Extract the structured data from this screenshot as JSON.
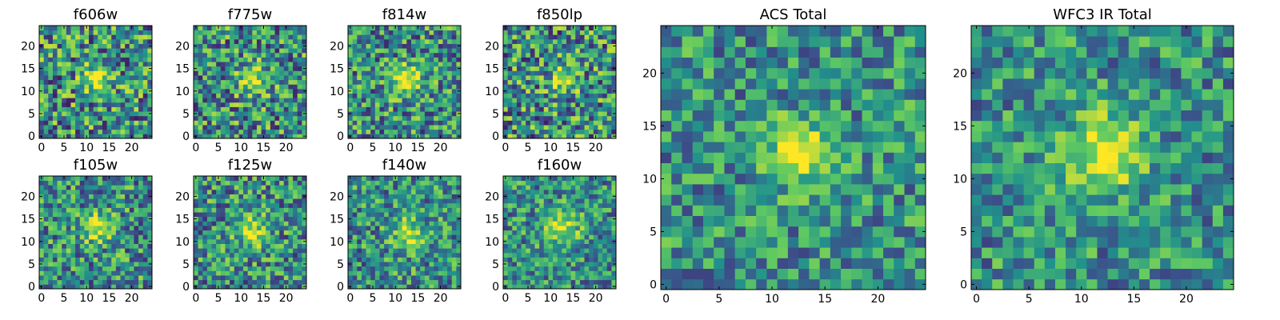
{
  "chart_data": [
    {
      "type": "heatmap",
      "title": "f606w",
      "x_ticks": [
        0,
        5,
        10,
        15,
        20
      ],
      "y_ticks": [
        0,
        5,
        10,
        15,
        20
      ],
      "xlim": [
        -0.5,
        24.5
      ],
      "ylim": [
        -0.5,
        24.5
      ],
      "grid_size": 25,
      "source_center": [
        12.5,
        13
      ],
      "source_peak": 0.65,
      "source_sigma": 2.2,
      "noise": 0.42,
      "seed": 11
    },
    {
      "type": "heatmap",
      "title": "f775w",
      "x_ticks": [
        0,
        5,
        10,
        15,
        20
      ],
      "y_ticks": [
        0,
        5,
        10,
        15,
        20
      ],
      "xlim": [
        -0.5,
        24.5
      ],
      "ylim": [
        -0.5,
        24.5
      ],
      "grid_size": 25,
      "source_center": [
        12.5,
        12.5
      ],
      "source_peak": 0.6,
      "source_sigma": 2.3,
      "noise": 0.4,
      "seed": 23
    },
    {
      "type": "heatmap",
      "title": "f814w",
      "x_ticks": [
        0,
        5,
        10,
        15,
        20
      ],
      "y_ticks": [
        0,
        5,
        10,
        15,
        20
      ],
      "xlim": [
        -0.5,
        24.5
      ],
      "ylim": [
        -0.5,
        24.5
      ],
      "grid_size": 25,
      "source_center": [
        12.5,
        12.5
      ],
      "source_peak": 0.75,
      "source_sigma": 2.3,
      "noise": 0.38,
      "seed": 37
    },
    {
      "type": "heatmap",
      "title": "f850lp",
      "x_ticks": [
        0,
        5,
        10,
        15,
        20
      ],
      "y_ticks": [
        0,
        5,
        10,
        15,
        20
      ],
      "xlim": [
        -0.5,
        24.5
      ],
      "ylim": [
        -0.5,
        24.5
      ],
      "grid_size": 25,
      "source_center": [
        13,
        13
      ],
      "source_peak": 0.55,
      "source_sigma": 2.2,
      "noise": 0.42,
      "seed": 41
    },
    {
      "type": "heatmap",
      "title": "f105w",
      "x_ticks": [
        0,
        5,
        10,
        15,
        20
      ],
      "y_ticks": [
        0,
        5,
        10,
        15,
        20
      ],
      "xlim": [
        -0.5,
        24.5
      ],
      "ylim": [
        -0.5,
        24.5
      ],
      "grid_size": 25,
      "source_center": [
        12.5,
        13
      ],
      "source_peak": 0.6,
      "source_sigma": 2.4,
      "noise": 0.36,
      "seed": 53
    },
    {
      "type": "heatmap",
      "title": "f125w",
      "x_ticks": [
        0,
        5,
        10,
        15,
        20
      ],
      "y_ticks": [
        0,
        5,
        10,
        15,
        20
      ],
      "xlim": [
        -0.5,
        24.5
      ],
      "ylim": [
        -0.5,
        24.5
      ],
      "grid_size": 25,
      "source_center": [
        12.5,
        12.5
      ],
      "source_peak": 0.55,
      "source_sigma": 2.6,
      "noise": 0.36,
      "seed": 67
    },
    {
      "type": "heatmap",
      "title": "f140w",
      "x_ticks": [
        0,
        5,
        10,
        15,
        20
      ],
      "y_ticks": [
        0,
        5,
        10,
        15,
        20
      ],
      "xlim": [
        -0.5,
        24.5
      ],
      "ylim": [
        -0.5,
        24.5
      ],
      "grid_size": 25,
      "source_center": [
        13,
        11.5
      ],
      "source_peak": 0.55,
      "source_sigma": 2.6,
      "noise": 0.34,
      "seed": 79
    },
    {
      "type": "heatmap",
      "title": "f160w",
      "x_ticks": [
        0,
        5,
        10,
        15,
        20
      ],
      "y_ticks": [
        0,
        5,
        10,
        15,
        20
      ],
      "xlim": [
        -0.5,
        24.5
      ],
      "ylim": [
        -0.5,
        24.5
      ],
      "grid_size": 25,
      "source_center": [
        12.5,
        13
      ],
      "source_peak": 0.6,
      "source_sigma": 2.8,
      "noise": 0.32,
      "seed": 83
    },
    {
      "type": "heatmap",
      "title": "ACS Total",
      "x_ticks": [
        0,
        5,
        10,
        15,
        20
      ],
      "y_ticks": [
        0,
        5,
        10,
        15,
        20
      ],
      "xlim": [
        -0.5,
        24.5
      ],
      "ylim": [
        -0.5,
        24.5
      ],
      "grid_size": 25,
      "source_center": [
        12.5,
        12.5
      ],
      "source_peak": 0.8,
      "source_sigma": 2.0,
      "noise": 0.3,
      "seed": 97
    },
    {
      "type": "heatmap",
      "title": "WFC3 IR Total",
      "x_ticks": [
        0,
        5,
        10,
        15,
        20
      ],
      "y_ticks": [
        0,
        5,
        10,
        15,
        20
      ],
      "xlim": [
        -0.5,
        24.5
      ],
      "ylim": [
        -0.5,
        24.5
      ],
      "grid_size": 25,
      "source_center": [
        12.5,
        12.5
      ],
      "source_peak": 0.75,
      "source_sigma": 2.6,
      "noise": 0.3,
      "seed": 101
    }
  ],
  "colors": {
    "colormap": "viridis",
    "stops": [
      "#440154",
      "#3b528b",
      "#21918c",
      "#5ec962",
      "#fde725"
    ]
  }
}
